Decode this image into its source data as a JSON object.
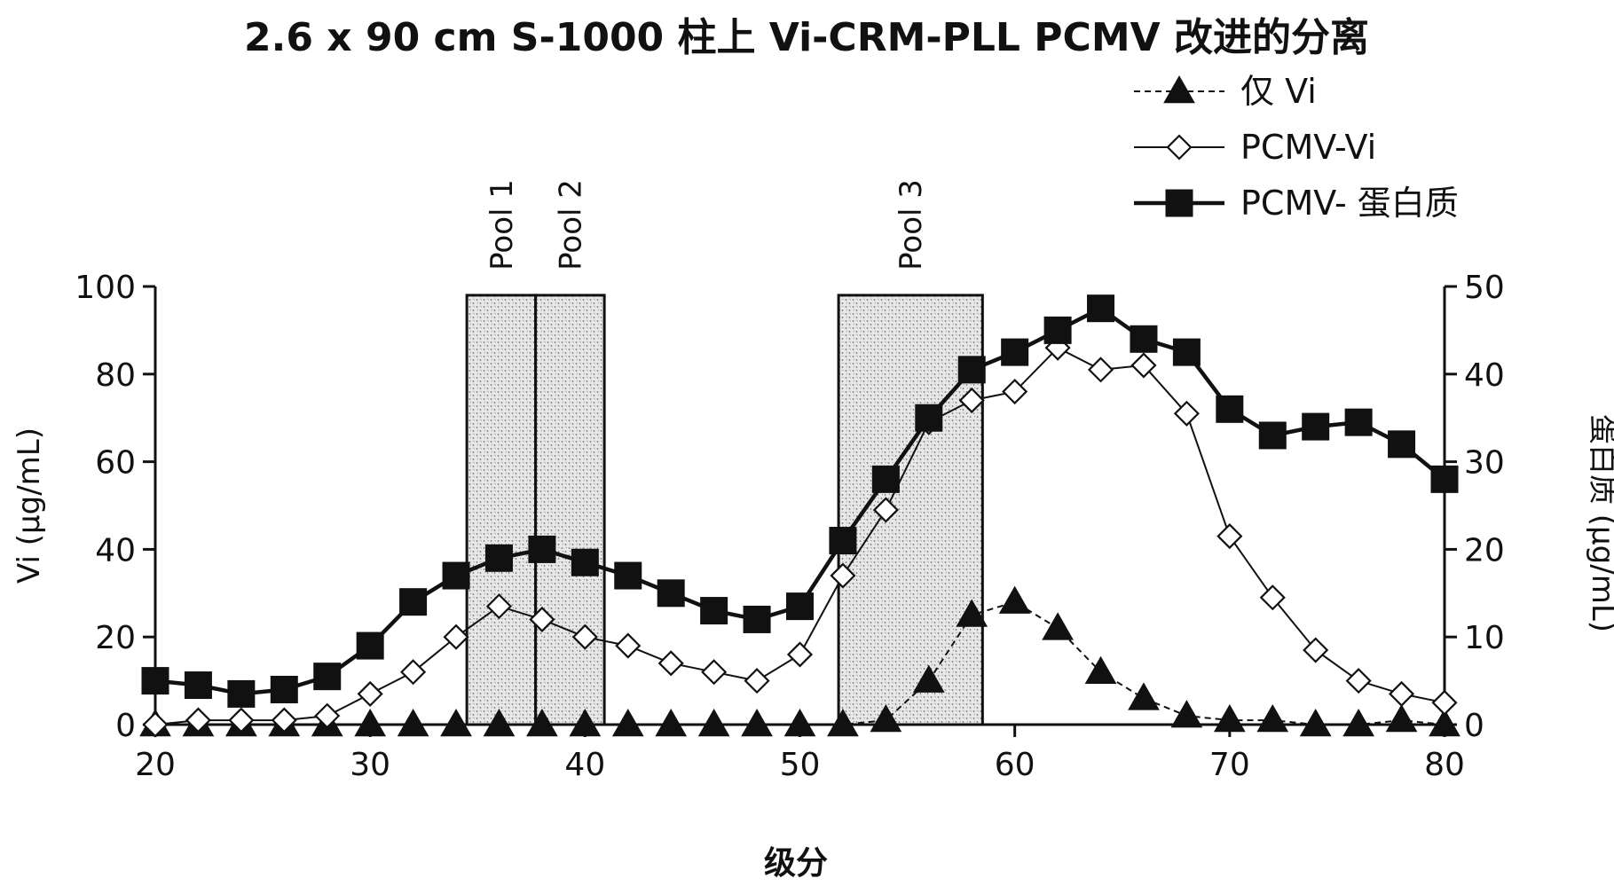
{
  "chart_data": {
    "type": "line",
    "title": "2.6 x 90 cm S-1000 柱上 Vi-CRM-PLL PCMV 改进的分离",
    "xlabel": "级分",
    "ylabel_left": "Vi (µg/mL)",
    "ylabel_right": "蛋白质 (µg/mL)",
    "xlim": [
      20,
      80
    ],
    "ylim_left": [
      0,
      100
    ],
    "ylim_right": [
      0,
      50
    ],
    "x_ticks": [
      20,
      30,
      40,
      50,
      60,
      70,
      80
    ],
    "y_ticks_left": [
      0,
      20,
      40,
      60,
      80,
      100
    ],
    "y_ticks_right": [
      0,
      10,
      20,
      30,
      40,
      50
    ],
    "legend_position": "top-right",
    "pools": [
      {
        "label": "Pool 1",
        "x_start": 34.5,
        "x_end": 37.7,
        "top": 98
      },
      {
        "label": "Pool 2",
        "x_start": 37.7,
        "x_end": 40.9,
        "top": 98
      },
      {
        "label": "Pool 3",
        "x_start": 51.8,
        "x_end": 58.5,
        "top": 98
      }
    ],
    "series": [
      {
        "name": "仅 Vi",
        "axis": "left",
        "marker": "triangle",
        "line": "dashed",
        "x": [
          20,
          22,
          24,
          26,
          28,
          30,
          32,
          34,
          36,
          38,
          40,
          42,
          44,
          46,
          48,
          50,
          52,
          54,
          56,
          58,
          60,
          62,
          64,
          66,
          68,
          70,
          72,
          74,
          76,
          78,
          80
        ],
        "values": [
          0,
          0,
          0,
          0,
          0,
          0,
          0,
          0,
          0,
          0,
          0,
          0,
          0,
          0,
          0,
          0,
          0,
          1,
          10,
          25,
          28,
          22,
          12,
          6,
          2,
          1,
          1,
          0,
          0,
          1,
          0
        ]
      },
      {
        "name": "PCMV-Vi",
        "axis": "left",
        "marker": "diamond-open",
        "line": "solid-thin",
        "x": [
          20,
          22,
          24,
          26,
          28,
          30,
          32,
          34,
          36,
          38,
          40,
          42,
          44,
          46,
          48,
          50,
          52,
          54,
          56,
          58,
          60,
          62,
          64,
          66,
          68,
          70,
          72,
          74,
          76,
          78,
          80
        ],
        "values": [
          0,
          1,
          1,
          1,
          2,
          7,
          12,
          20,
          27,
          24,
          20,
          18,
          14,
          12,
          10,
          16,
          34,
          49,
          69,
          74,
          76,
          86,
          81,
          82,
          71,
          43,
          29,
          17,
          10,
          7,
          5
        ]
      },
      {
        "name": "PCMV- 蛋白质",
        "axis": "right",
        "marker": "square-filled",
        "line": "solid-thick",
        "x": [
          20,
          22,
          24,
          26,
          28,
          30,
          32,
          34,
          36,
          38,
          40,
          42,
          44,
          46,
          48,
          50,
          52,
          54,
          56,
          58,
          60,
          62,
          64,
          66,
          68,
          70,
          72,
          74,
          76,
          78,
          80
        ],
        "values": [
          5,
          4.5,
          3.5,
          4,
          5.5,
          9,
          14,
          17,
          19,
          20,
          18.5,
          17,
          15,
          13,
          12,
          13.5,
          21,
          28,
          35,
          40.5,
          42.5,
          45,
          47.5,
          44,
          42.5,
          36,
          33,
          34,
          34.5,
          32,
          28
        ]
      }
    ]
  },
  "colors": {
    "ink": "#111111",
    "pool_fill": "#e6e6e6",
    "pool_stipple": "#7a7a7a",
    "background": "#ffffff"
  }
}
